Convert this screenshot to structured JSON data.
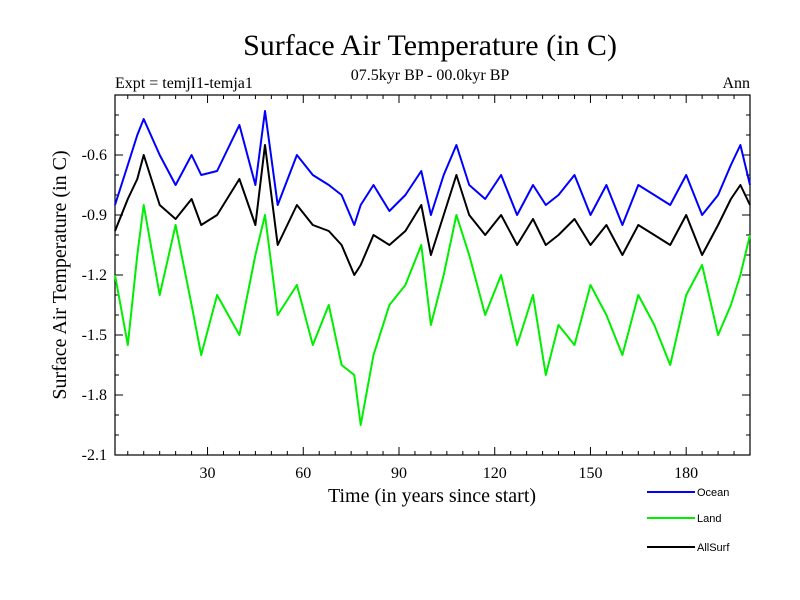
{
  "chart_data": {
    "type": "line",
    "title": "Surface Air Temperature (in C)",
    "subtitle": "07.5kyr BP - 00.0kyr BP",
    "left_label": "Expt = temjI1-temja1",
    "right_label": "Ann",
    "xlabel": "Time (in years since start)",
    "ylabel": "Surface Air Temperature (in C)",
    "xlim": [
      1,
      200
    ],
    "ylim": [
      -2.1,
      -0.3
    ],
    "x_ticks": [
      30,
      60,
      90,
      120,
      150,
      180
    ],
    "y_ticks": [
      -2.1,
      -1.8,
      -1.5,
      -1.2,
      -0.9,
      -0.6
    ],
    "x_tick_labels": [
      "30",
      "60",
      "90",
      "120",
      "150",
      "180"
    ],
    "y_tick_labels": [
      "-2.1",
      "-1.8",
      "-1.5",
      "-1.2",
      "-0.9",
      "-0.6"
    ],
    "x": [
      1,
      5,
      8,
      10,
      15,
      20,
      25,
      28,
      33,
      40,
      45,
      48,
      52,
      58,
      63,
      68,
      72,
      76,
      78,
      82,
      87,
      92,
      97,
      100,
      104,
      108,
      112,
      117,
      122,
      127,
      132,
      136,
      140,
      145,
      150,
      155,
      160,
      165,
      170,
      175,
      180,
      185,
      190,
      194,
      197,
      200
    ],
    "series": [
      {
        "name": "Ocean",
        "color": "#0000ff",
        "values": [
          -0.85,
          -0.65,
          -0.5,
          -0.42,
          -0.6,
          -0.75,
          -0.6,
          -0.7,
          -0.68,
          -0.45,
          -0.75,
          -0.38,
          -0.85,
          -0.6,
          -0.7,
          -0.75,
          -0.8,
          -0.95,
          -0.85,
          -0.75,
          -0.88,
          -0.8,
          -0.68,
          -0.9,
          -0.7,
          -0.55,
          -0.75,
          -0.82,
          -0.7,
          -0.9,
          -0.75,
          -0.85,
          -0.8,
          -0.7,
          -0.9,
          -0.75,
          -0.95,
          -0.75,
          -0.8,
          -0.85,
          -0.7,
          -0.9,
          -0.8,
          -0.65,
          -0.55,
          -0.75
        ]
      },
      {
        "name": "Land",
        "color": "#00ee00",
        "values": [
          -1.2,
          -1.55,
          -1.1,
          -0.85,
          -1.3,
          -0.95,
          -1.35,
          -1.6,
          -1.3,
          -1.5,
          -1.1,
          -0.9,
          -1.4,
          -1.25,
          -1.55,
          -1.35,
          -1.65,
          -1.7,
          -1.95,
          -1.6,
          -1.35,
          -1.25,
          -1.05,
          -1.45,
          -1.2,
          -0.9,
          -1.1,
          -1.4,
          -1.2,
          -1.55,
          -1.3,
          -1.7,
          -1.45,
          -1.55,
          -1.25,
          -1.4,
          -1.6,
          -1.3,
          -1.45,
          -1.65,
          -1.3,
          -1.15,
          -1.5,
          -1.35,
          -1.2,
          -1.0
        ]
      },
      {
        "name": "AllSurf",
        "color": "#000000",
        "values": [
          -0.98,
          -0.82,
          -0.72,
          -0.6,
          -0.85,
          -0.92,
          -0.82,
          -0.95,
          -0.9,
          -0.72,
          -0.95,
          -0.55,
          -1.05,
          -0.85,
          -0.95,
          -0.98,
          -1.05,
          -1.2,
          -1.15,
          -1.0,
          -1.05,
          -0.98,
          -0.85,
          -1.1,
          -0.9,
          -0.7,
          -0.9,
          -1.0,
          -0.9,
          -1.05,
          -0.92,
          -1.05,
          -1.0,
          -0.92,
          -1.05,
          -0.95,
          -1.1,
          -0.95,
          -1.0,
          -1.05,
          -0.9,
          -1.1,
          -0.95,
          -0.82,
          -0.75,
          -0.85
        ]
      }
    ],
    "legend": {
      "position": "bottom-right",
      "labels": [
        "Ocean",
        "Land",
        "AllSurf"
      ]
    }
  }
}
